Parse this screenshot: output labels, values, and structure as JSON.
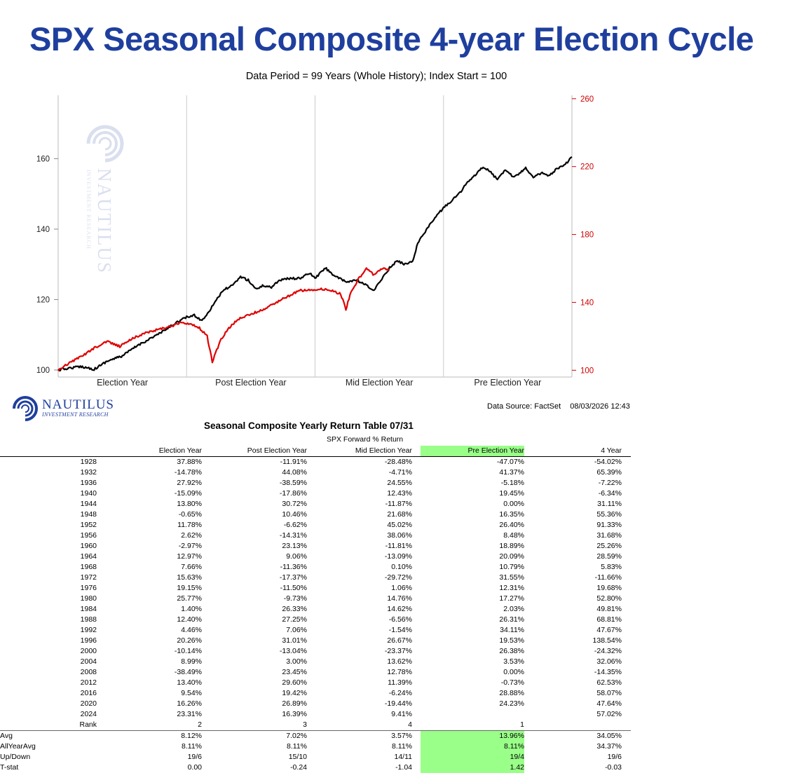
{
  "title": "SPX Seasonal Composite 4-year Election Cycle",
  "subtitle": "Data Period = 99 Years (Whole History); Index Start = 100",
  "chart_data": {
    "type": "line",
    "x_categories": [
      "Election Year",
      "Post Election Year",
      "Mid Election Year",
      "Pre Election Year"
    ],
    "y_left": {
      "ticks": [
        "100",
        "120",
        "140",
        "160"
      ],
      "range": [
        98,
        178
      ]
    },
    "y_right": {
      "ticks": [
        "100",
        "140",
        "180",
        "220",
        "260"
      ],
      "range": [
        96,
        262
      ],
      "color": "#d00000"
    },
    "grid_vertical": true,
    "series": [
      {
        "axis": "left",
        "color": "#000000",
        "x": [
          0,
          0.08,
          0.18,
          0.28,
          0.38,
          0.5,
          0.62,
          0.72,
          0.82,
          0.92,
          1.0,
          1.06,
          1.12,
          1.18,
          1.24,
          1.3,
          1.36,
          1.42,
          1.48,
          1.54,
          1.6,
          1.66,
          1.72,
          1.8,
          1.88,
          1.96,
          2.0,
          2.08,
          2.16,
          2.24,
          2.32,
          2.4,
          2.46,
          2.52,
          2.58,
          2.64,
          2.7,
          2.76,
          2.8,
          2.85,
          2.9,
          2.95,
          3.0,
          3.06,
          3.12,
          3.18,
          3.24,
          3.3,
          3.36,
          3.42,
          3.48,
          3.54,
          3.6,
          3.64,
          3.7,
          3.76,
          3.82,
          3.88,
          3.94,
          4.0
        ],
        "y": [
          100,
          100.5,
          101,
          100.2,
          102.5,
          104,
          107,
          109,
          111,
          113.5,
          115,
          115.5,
          114,
          117,
          120.5,
          123,
          124,
          126.5,
          125.5,
          123,
          124,
          123.5,
          125.5,
          126,
          126,
          127.5,
          126,
          129,
          126.5,
          125,
          125.5,
          124,
          122.5,
          126,
          129,
          131,
          130,
          131,
          136,
          139,
          141.5,
          144,
          146,
          148,
          150,
          153,
          155,
          157.5,
          156.5,
          154,
          157,
          155,
          156,
          157.5,
          154.5,
          156,
          155,
          157,
          158,
          160.5
        ]
      },
      {
        "axis": "right",
        "color": "#e00000",
        "x": [
          0,
          0.08,
          0.18,
          0.28,
          0.38,
          0.48,
          0.58,
          0.68,
          0.78,
          0.88,
          0.96,
          1.04,
          1.1,
          1.16,
          1.2,
          1.26,
          1.32,
          1.4,
          1.5,
          1.6,
          1.7,
          1.8,
          1.88,
          1.96,
          2.04,
          2.12,
          2.2,
          2.24,
          2.28,
          2.3,
          2.34,
          2.4,
          2.46,
          2.52,
          2.58
        ],
        "y": [
          100,
          104,
          108,
          113,
          117,
          114,
          119,
          122,
          124,
          126,
          128,
          127,
          125,
          120,
          105,
          117,
          124,
          130,
          133,
          136,
          140,
          144,
          147,
          147,
          148,
          147,
          145,
          136,
          146,
          148,
          154,
          160,
          156,
          160,
          159
        ]
      }
    ]
  },
  "watermark_text": "NAUTILUS",
  "watermark_sub": "INVESTMENT RESEARCH",
  "logo": {
    "name": "NAUTILUS",
    "sub": "INVESTMENT RESEARCH"
  },
  "source": {
    "label": "Data Source: FactSet",
    "date": "08/03/2026 12:43"
  },
  "table": {
    "title": "Seasonal Composite Yearly Return Table 07/31",
    "subtitle": "SPX Forward % Return",
    "columns": [
      "Election Year",
      "Post Election Year",
      "Mid Election Year",
      "Pre Election Year",
      "4 Year"
    ],
    "highlight_color": "#99ff88",
    "rows": [
      [
        "1928",
        "37.88%",
        "-11.91%",
        "-28.48%",
        "-47.07%",
        "-54.02%"
      ],
      [
        "1932",
        "-14.78%",
        "44.08%",
        "-4.71%",
        "41.37%",
        "65.39%"
      ],
      [
        "1936",
        "27.92%",
        "-38.59%",
        "24.55%",
        "-5.18%",
        "-7.22%"
      ],
      [
        "1940",
        "-15.09%",
        "-17.86%",
        "12.43%",
        "19.45%",
        "-6.34%"
      ],
      [
        "1944",
        "13.80%",
        "30.72%",
        "-11.87%",
        "0.00%",
        "31.11%"
      ],
      [
        "1948",
        "-0.65%",
        "10.46%",
        "21.68%",
        "16.35%",
        "55.36%"
      ],
      [
        "1952",
        "11.78%",
        "-6.62%",
        "45.02%",
        "26.40%",
        "91.33%"
      ],
      [
        "1956",
        "2.62%",
        "-14.31%",
        "38.06%",
        "8.48%",
        "31.68%"
      ],
      [
        "1960",
        "-2.97%",
        "23.13%",
        "-11.81%",
        "18.89%",
        "25.26%"
      ],
      [
        "1964",
        "12.97%",
        "9.06%",
        "-13.09%",
        "20.09%",
        "28.59%"
      ],
      [
        "1968",
        "7.66%",
        "-11.36%",
        "0.10%",
        "10.79%",
        "5.83%"
      ],
      [
        "1972",
        "15.63%",
        "-17.37%",
        "-29.72%",
        "31.55%",
        "-11.66%"
      ],
      [
        "1976",
        "19.15%",
        "-11.50%",
        "1.06%",
        "12.31%",
        "19.68%"
      ],
      [
        "1980",
        "25.77%",
        "-9.73%",
        "14.76%",
        "17.27%",
        "52.80%"
      ],
      [
        "1984",
        "1.40%",
        "26.33%",
        "14.62%",
        "2.03%",
        "49.81%"
      ],
      [
        "1988",
        "12.40%",
        "27.25%",
        "-6.56%",
        "26.31%",
        "68.81%"
      ],
      [
        "1992",
        "4.46%",
        "7.06%",
        "-1.54%",
        "34.11%",
        "47.67%"
      ],
      [
        "1996",
        "20.26%",
        "31.01%",
        "26.67%",
        "19.53%",
        "138.54%"
      ],
      [
        "2000",
        "-10.14%",
        "-13.04%",
        "-23.37%",
        "26.38%",
        "-24.32%"
      ],
      [
        "2004",
        "8.99%",
        "3.00%",
        "13.62%",
        "3.53%",
        "32.06%"
      ],
      [
        "2008",
        "-38.49%",
        "23.45%",
        "12.78%",
        "0.00%",
        "-14.35%"
      ],
      [
        "2012",
        "13.40%",
        "29.60%",
        "11.39%",
        "-0.73%",
        "62.53%"
      ],
      [
        "2016",
        "9.54%",
        "19.42%",
        "-6.24%",
        "28.88%",
        "58.07%"
      ],
      [
        "2020",
        "16.26%",
        "26.89%",
        "-19.44%",
        "24.23%",
        "47.64%"
      ],
      [
        "2024",
        "23.31%",
        "16.39%",
        "9.41%",
        "",
        "57.02%"
      ]
    ],
    "rank": {
      "label": "Rank",
      "values": [
        "2",
        "3",
        "4",
        "1",
        ""
      ]
    },
    "summary": [
      {
        "label": "Avg",
        "values": [
          "8.12%",
          "7.02%",
          "3.57%",
          "13.96%",
          "34.05%"
        ]
      },
      {
        "label": "AllYearAvg",
        "values": [
          "8.11%",
          "8.11%",
          "8.11%",
          "8.11%",
          "34.37%"
        ]
      },
      {
        "label": "Up/Down",
        "values": [
          "19/6",
          "15/10",
          "14/11",
          "19/4",
          "19/6"
        ]
      },
      {
        "label": "T-stat",
        "values": [
          "0.00",
          "-0.24",
          "-1.04",
          "1.42",
          "-0.03"
        ]
      }
    ]
  }
}
